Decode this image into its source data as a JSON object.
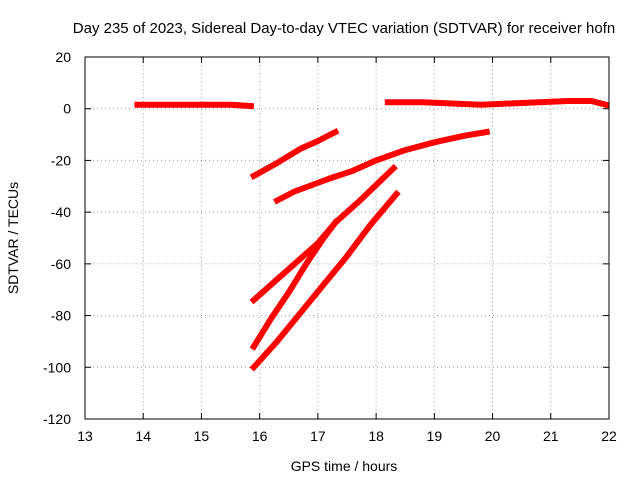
{
  "chart_data": {
    "type": "line",
    "title": "Day 235 of 2023, Sidereal Day-to-day VTEC variation (SDTVAR) for receiver hofn",
    "xlabel": "GPS time / hours",
    "ylabel": "SDTVAR / TECUs",
    "xlim": [
      13,
      22
    ],
    "ylim": [
      -120,
      20
    ],
    "xticks": [
      13,
      14,
      15,
      16,
      17,
      18,
      19,
      20,
      21,
      22
    ],
    "yticks": [
      20,
      0,
      -20,
      -40,
      -60,
      -80,
      -100,
      -120
    ],
    "grid": true,
    "legend": "none",
    "color": "#ff0000",
    "series": [
      {
        "x": [
          13.9,
          14.5,
          15.0,
          15.5,
          15.85
        ],
        "y": [
          1.5,
          1.5,
          1.5,
          1.5,
          1.0
        ]
      },
      {
        "x": [
          18.2,
          18.8,
          19.3,
          19.8,
          20.3,
          20.8,
          21.3,
          21.7,
          21.95
        ],
        "y": [
          2.5,
          2.5,
          2.0,
          1.5,
          2.0,
          2.5,
          3.0,
          3.0,
          1.5
        ]
      },
      {
        "x": [
          15.9,
          16.3,
          16.7,
          17.0,
          17.3
        ],
        "y": [
          -26,
          -21,
          -15.5,
          -12.5,
          -9
        ]
      },
      {
        "x": [
          16.3,
          16.6,
          16.9,
          17.2,
          17.6,
          18.0,
          18.5,
          19.0,
          19.5,
          19.9
        ],
        "y": [
          -35.5,
          -32,
          -29.5,
          -27,
          -24,
          -20,
          -16,
          -13,
          -10.5,
          -9
        ]
      },
      {
        "x": [
          15.9,
          16.3,
          16.6,
          17.0,
          17.3,
          17.7,
          18.0,
          18.3
        ],
        "y": [
          -74,
          -66,
          -60,
          -52,
          -44,
          -36,
          -29.5,
          -23
        ]
      },
      {
        "x": [
          15.9,
          16.2,
          16.5,
          16.8,
          17.1,
          17.3
        ],
        "y": [
          -92,
          -81,
          -71,
          -60,
          -50,
          -44
        ]
      },
      {
        "x": [
          15.9,
          16.3,
          16.7,
          17.1,
          17.5,
          17.9,
          18.35
        ],
        "y": [
          -100,
          -90,
          -79,
          -68,
          -57,
          -45,
          -33
        ]
      }
    ]
  }
}
